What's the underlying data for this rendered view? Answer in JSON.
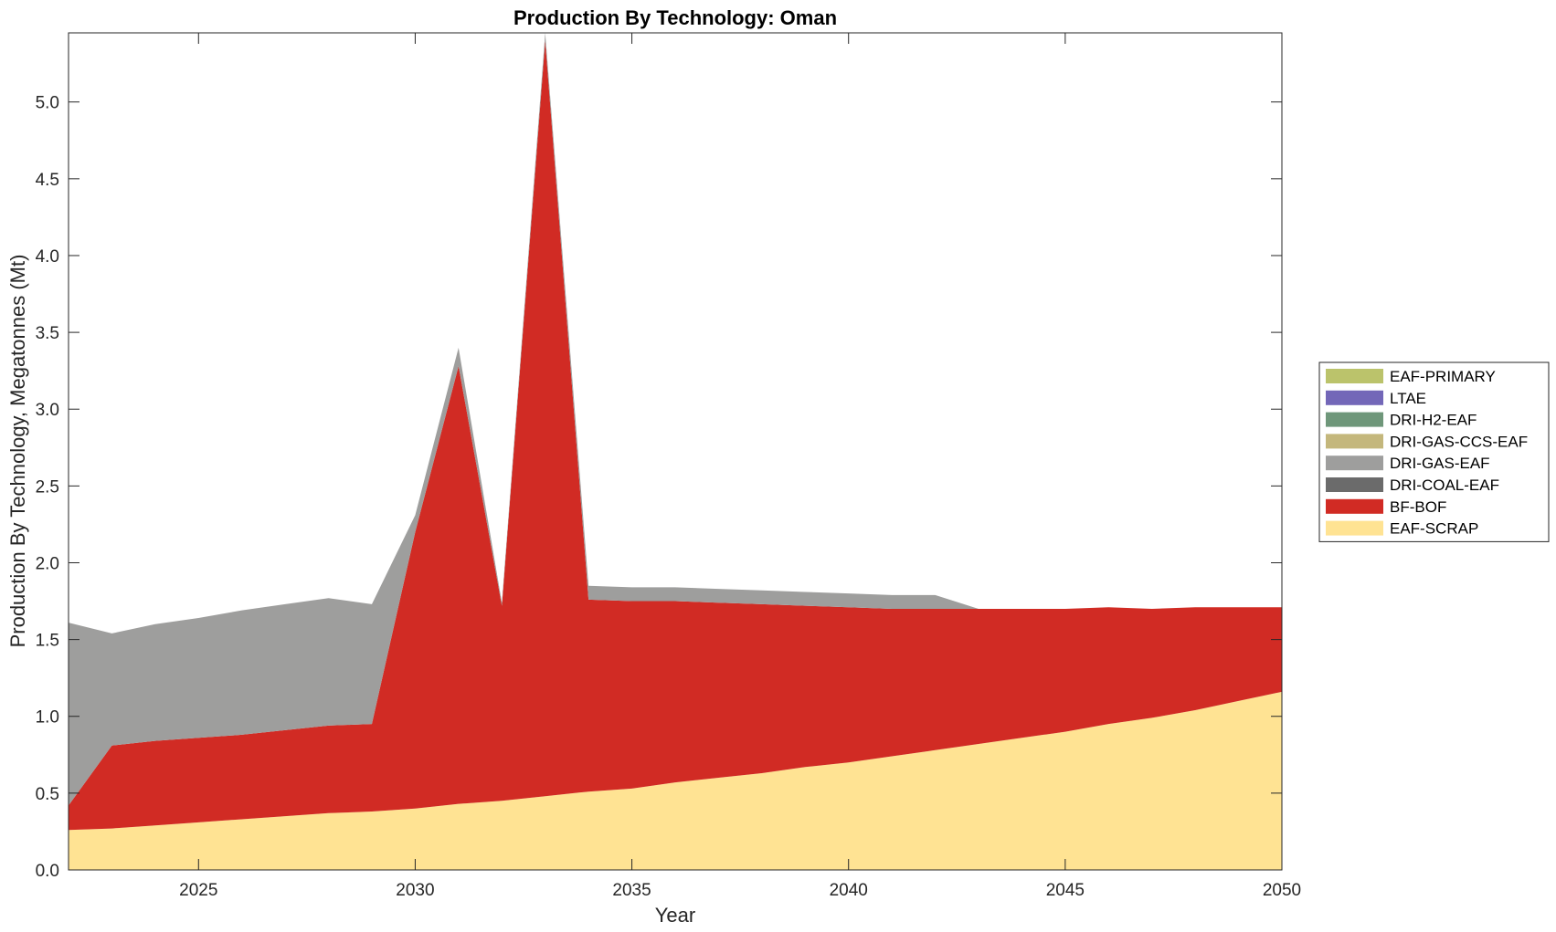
{
  "chart_data": {
    "type": "area",
    "stacked": true,
    "title": "Production By Technology: Oman",
    "xlabel": "Year",
    "ylabel": "Production By Technology, Megatonnes (Mt)",
    "xlim": [
      2022,
      2050
    ],
    "ylim": [
      0,
      5.45
    ],
    "xticks": [
      2025,
      2030,
      2035,
      2040,
      2045,
      2050
    ],
    "yticks": [
      0.0,
      0.5,
      1.0,
      1.5,
      2.0,
      2.5,
      3.0,
      3.5,
      4.0,
      4.5,
      5.0
    ],
    "ytick_labels": [
      "0.0",
      "0.5",
      "1.0",
      "1.5",
      "2.0",
      "2.5",
      "3.0",
      "3.5",
      "4.0",
      "4.5",
      "5.0"
    ],
    "grid": false,
    "legend_position": "outside-right",
    "x": [
      2022,
      2023,
      2024,
      2025,
      2026,
      2027,
      2028,
      2029,
      2030,
      2031,
      2032,
      2033,
      2034,
      2035,
      2036,
      2037,
      2038,
      2039,
      2040,
      2041,
      2042,
      2043,
      2044,
      2045,
      2046,
      2047,
      2048,
      2049,
      2050
    ],
    "series": [
      {
        "name": "EAF-SCRAP",
        "color": "#FFE393",
        "values": [
          0.26,
          0.27,
          0.29,
          0.31,
          0.33,
          0.35,
          0.37,
          0.38,
          0.4,
          0.43,
          0.45,
          0.48,
          0.51,
          0.53,
          0.57,
          0.6,
          0.63,
          0.67,
          0.7,
          0.74,
          0.78,
          0.82,
          0.86,
          0.9,
          0.95,
          0.99,
          1.04,
          1.1,
          1.16
        ]
      },
      {
        "name": "BF-BOF",
        "color": "#D12B24",
        "values": [
          0.16,
          0.54,
          0.55,
          0.55,
          0.55,
          0.56,
          0.57,
          0.57,
          1.8,
          2.85,
          1.27,
          4.92,
          1.25,
          1.22,
          1.18,
          1.14,
          1.1,
          1.05,
          1.01,
          0.96,
          0.92,
          0.88,
          0.84,
          0.8,
          0.76,
          0.71,
          0.67,
          0.61,
          0.55
        ]
      },
      {
        "name": "DRI-COAL-EAF",
        "color": "#6B6B6B",
        "values": [
          0,
          0,
          0,
          0,
          0,
          0,
          0,
          0,
          0,
          0,
          0,
          0,
          0,
          0,
          0,
          0,
          0,
          0,
          0,
          0,
          0,
          0,
          0,
          0,
          0,
          0,
          0,
          0,
          0
        ]
      },
      {
        "name": "DRI-GAS-EAF",
        "color": "#9E9E9D",
        "values": [
          1.19,
          0.73,
          0.76,
          0.78,
          0.81,
          0.82,
          0.83,
          0.78,
          0.11,
          0.12,
          0.02,
          0.05,
          0.09,
          0.09,
          0.09,
          0.09,
          0.09,
          0.09,
          0.09,
          0.09,
          0.09,
          0.0,
          0,
          0,
          0,
          0,
          0,
          0,
          0
        ]
      },
      {
        "name": "DRI-GAS-CCS-EAF",
        "color": "#C4B77C",
        "values": [
          0,
          0,
          0,
          0,
          0,
          0,
          0,
          0,
          0,
          0,
          0,
          0,
          0,
          0,
          0,
          0,
          0,
          0,
          0,
          0,
          0,
          0,
          0,
          0,
          0,
          0,
          0,
          0,
          0
        ]
      },
      {
        "name": "DRI-H2-EAF",
        "color": "#6F977A",
        "values": [
          0,
          0,
          0,
          0,
          0,
          0,
          0,
          0,
          0,
          0,
          0,
          0,
          0,
          0,
          0,
          0,
          0,
          0,
          0,
          0,
          0,
          0,
          0,
          0,
          0,
          0,
          0,
          0,
          0
        ]
      },
      {
        "name": "LTAE",
        "color": "#7367B8",
        "values": [
          0,
          0,
          0,
          0,
          0,
          0,
          0,
          0,
          0,
          0,
          0,
          0,
          0,
          0,
          0,
          0,
          0,
          0,
          0,
          0,
          0,
          0,
          0,
          0,
          0,
          0,
          0,
          0,
          0
        ]
      },
      {
        "name": "EAF-PRIMARY",
        "color": "#BBC36B",
        "values": [
          0,
          0,
          0,
          0,
          0,
          0,
          0,
          0,
          0,
          0,
          0,
          0,
          0,
          0,
          0,
          0,
          0,
          0,
          0,
          0,
          0,
          0,
          0,
          0,
          0,
          0,
          0,
          0,
          0
        ]
      }
    ],
    "legend_order": [
      "EAF-PRIMARY",
      "LTAE",
      "DRI-H2-EAF",
      "DRI-GAS-CCS-EAF",
      "DRI-GAS-EAF",
      "DRI-COAL-EAF",
      "BF-BOF",
      "EAF-SCRAP"
    ]
  }
}
